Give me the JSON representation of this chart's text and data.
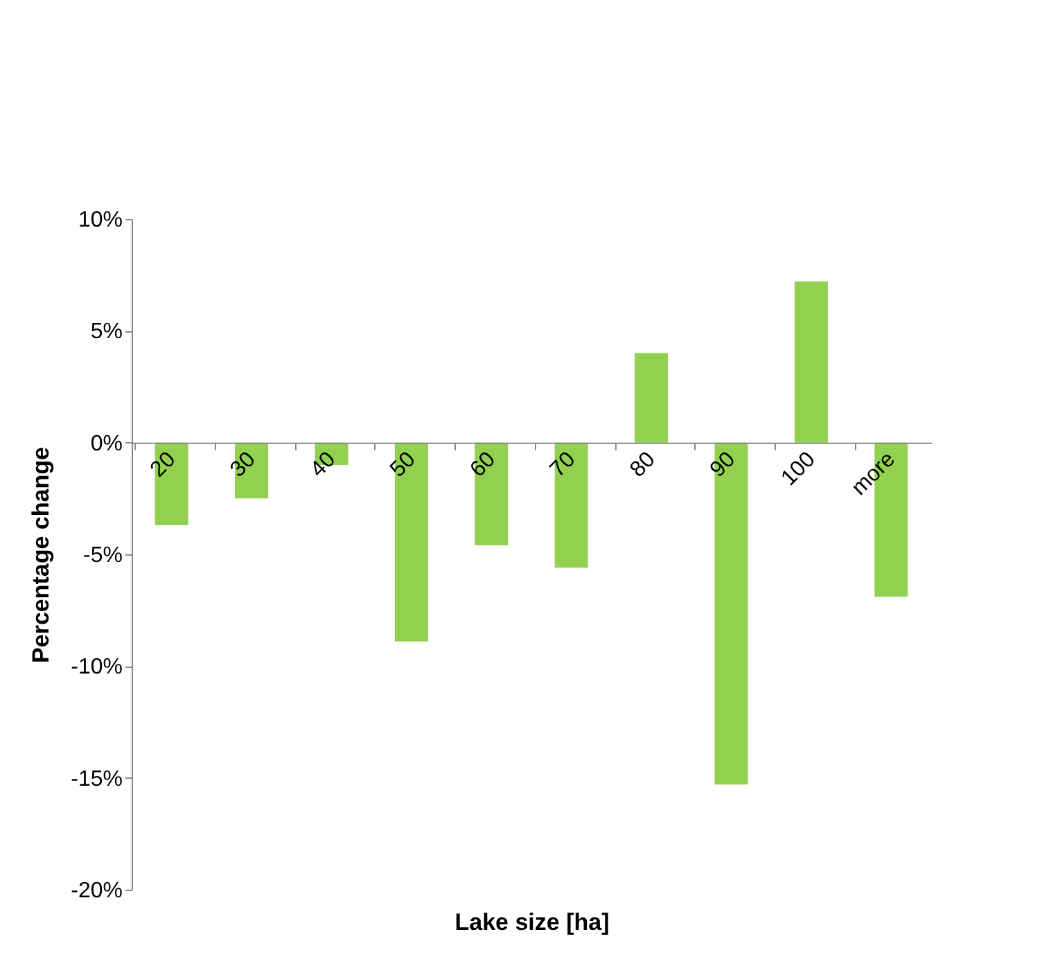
{
  "chart_data": {
    "type": "bar",
    "xlabel": "Lake size [ha]",
    "ylabel": "Percentage change",
    "categories": [
      "20",
      "30",
      "40",
      "50",
      "60",
      "70",
      "80",
      "90",
      "100",
      "more"
    ],
    "values": [
      -3.7,
      -2.5,
      -1.0,
      -8.9,
      -4.6,
      -5.6,
      4.0,
      -15.3,
      7.2,
      -6.9
    ],
    "color": "#92d050",
    "ylim": [
      -20,
      10
    ],
    "yticks": [
      {
        "value": -20,
        "label": "-20%"
      },
      {
        "value": -15,
        "label": "-15%"
      },
      {
        "value": -10,
        "label": "-10%"
      },
      {
        "value": -5,
        "label": "-5%"
      },
      {
        "value": 0,
        "label": "0%"
      },
      {
        "value": 5,
        "label": "5%"
      },
      {
        "value": 10,
        "label": "10%"
      }
    ],
    "grid": false
  }
}
